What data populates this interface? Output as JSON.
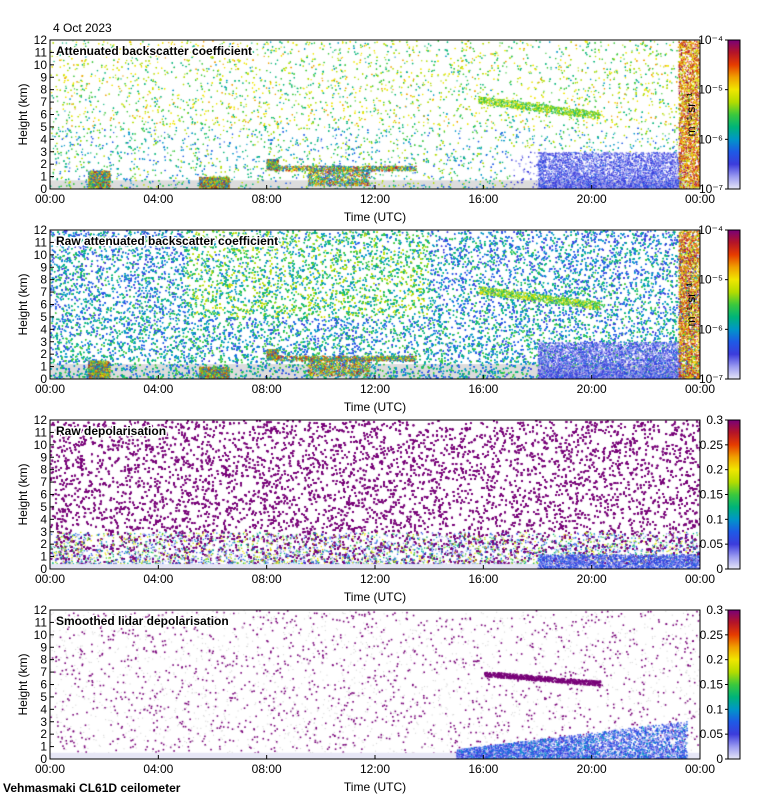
{
  "header": {
    "date": "4 Oct 2023"
  },
  "footer": {
    "site": "Vehmasmaki CL61D ceilometer"
  },
  "colors": {
    "background": "#ffffff",
    "clear_air": "#dcdcdc",
    "colormap": [
      "#e6e6f5",
      "#9a9af0",
      "#3c3cdc",
      "#1e5ae6",
      "#0096c8",
      "#00b478",
      "#3cc83c",
      "#b4dc00",
      "#f0e600",
      "#f0a000",
      "#e63c00",
      "#b41428",
      "#780078"
    ]
  },
  "chart_data": [
    {
      "type": "heatmap",
      "title": "Attenuated backscatter coefficient",
      "xlabel": "Time (UTC)",
      "ylabel": "Height (km)",
      "x_ticks": [
        "00:00",
        "04:00",
        "08:00",
        "12:00",
        "16:00",
        "20:00",
        "00:00"
      ],
      "xlim_hours": [
        0,
        24
      ],
      "ylim": [
        0,
        12
      ],
      "y_ticks": [
        0,
        1,
        2,
        3,
        4,
        5,
        6,
        7,
        8,
        9,
        10,
        11,
        12
      ],
      "colorbar": {
        "scale": "log",
        "unit": "m⁻¹ sr⁻¹",
        "ticks": [
          "10⁻⁷",
          "10⁻⁶",
          "10⁻⁵",
          "10⁻⁴"
        ],
        "range": [
          1e-07,
          0.0001
        ]
      },
      "features": [
        {
          "desc": "aerosol boundary layer",
          "t_hours": [
            0,
            24
          ],
          "height_km": [
            0,
            1.0
          ]
        },
        {
          "desc": "low cloud",
          "t_hours": [
            1.4,
            2.2
          ],
          "height_km": [
            0.2,
            1.5
          ]
        },
        {
          "desc": "cloud layer",
          "t_hours": [
            8.0,
            13.5
          ],
          "height_km": [
            1.4,
            1.9
          ]
        },
        {
          "desc": "mid-level cloud",
          "t_hours": [
            15.8,
            20.3
          ],
          "height_km": [
            5.8,
            7.4
          ]
        },
        {
          "desc": "boundary layer haze",
          "t_hours": [
            18.0,
            23.4
          ],
          "height_km": [
            0.2,
            3.0
          ]
        }
      ]
    },
    {
      "type": "heatmap",
      "title": "Raw attenuated backscatter coefficient",
      "xlabel": "Time (UTC)",
      "ylabel": "Height (km)",
      "x_ticks": [
        "00:00",
        "04:00",
        "08:00",
        "12:00",
        "16:00",
        "20:00",
        "00:00"
      ],
      "xlim_hours": [
        0,
        24
      ],
      "ylim": [
        0,
        12
      ],
      "y_ticks": [
        0,
        1,
        2,
        3,
        4,
        5,
        6,
        7,
        8,
        9,
        10,
        11,
        12
      ],
      "colorbar": {
        "scale": "log",
        "unit": "m⁻¹ sr⁻¹",
        "ticks": [
          "10⁻⁷",
          "10⁻⁶",
          "10⁻⁵",
          "10⁻⁴"
        ],
        "range": [
          1e-07,
          0.0001
        ]
      }
    },
    {
      "type": "heatmap",
      "title": "Raw depolarisation",
      "xlabel": "Time (UTC)",
      "ylabel": "Height (km)",
      "x_ticks": [
        "00:00",
        "04:00",
        "08:00",
        "12:00",
        "16:00",
        "20:00",
        "00:00"
      ],
      "xlim_hours": [
        0,
        24
      ],
      "ylim": [
        0,
        12
      ],
      "y_ticks": [
        0,
        1,
        2,
        3,
        4,
        5,
        6,
        7,
        8,
        9,
        10,
        11,
        12
      ],
      "colorbar": {
        "scale": "linear",
        "unit": "",
        "ticks": [
          "0",
          "0.05",
          "0.1",
          "0.15",
          "0.2",
          "0.25",
          "0.3"
        ],
        "range": [
          0,
          0.3
        ]
      }
    },
    {
      "type": "heatmap",
      "title": "Smoothed lidar depolarisation",
      "xlabel": "Time (UTC)",
      "ylabel": "Height (km)",
      "x_ticks": [
        "00:00",
        "04:00",
        "08:00",
        "12:00",
        "16:00",
        "20:00",
        "00:00"
      ],
      "xlim_hours": [
        0,
        24
      ],
      "ylim": [
        0,
        12
      ],
      "y_ticks": [
        0,
        1,
        2,
        3,
        4,
        5,
        6,
        7,
        8,
        9,
        10,
        11,
        12
      ],
      "colorbar": {
        "scale": "linear",
        "unit": "",
        "ticks": [
          "0",
          "0.05",
          "0.1",
          "0.15",
          "0.2",
          "0.25",
          "0.3"
        ],
        "range": [
          0,
          0.3
        ]
      }
    }
  ]
}
